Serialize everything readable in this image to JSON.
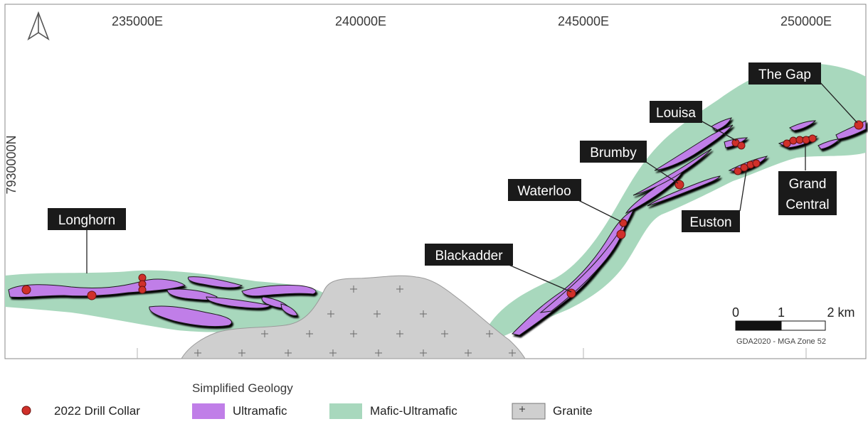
{
  "map": {
    "north_arrow": "north-arrow-icon",
    "easting_labels": [
      "235000E",
      "240000E",
      "245000E",
      "250000E"
    ],
    "northing_label": "7930000N",
    "prospects": [
      "Longhorn",
      "Blackadder",
      "Waterloo",
      "Brumby",
      "Louisa",
      "Euston",
      "Grand",
      "Central",
      "The Gap"
    ],
    "scale_bar": {
      "ticks": [
        "0",
        "1",
        "2 km"
      ],
      "projection": "GDA2020 - MGA Zone 52"
    }
  },
  "legend": {
    "title": "Simplified Geology",
    "items": [
      {
        "label": "2022 Drill Collar",
        "color": "#d0302a"
      },
      {
        "label": "Ultramafic",
        "color": "#c07ee8"
      },
      {
        "label": "Mafic-Ultramafic",
        "color": "#a8d8bd"
      },
      {
        "label": "Granite",
        "color": "#cfcfcf"
      }
    ]
  }
}
